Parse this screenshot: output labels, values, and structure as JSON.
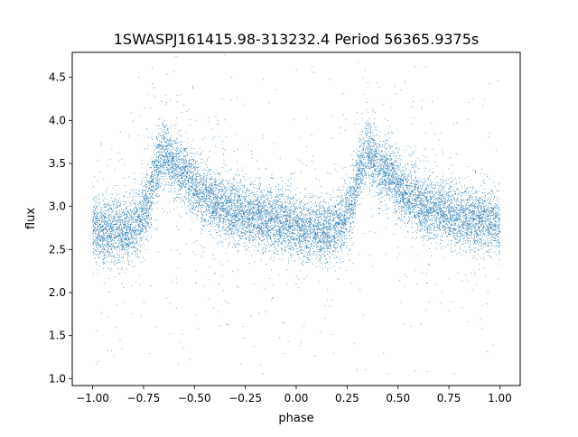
{
  "chart_data": {
    "type": "scatter",
    "title": "1SWASPJ161415.98-313232.4 Period 56365.9375s",
    "xlabel": "phase",
    "ylabel": "flux",
    "xlim": [
      -1.1,
      1.1
    ],
    "ylim": [
      0.92,
      4.79
    ],
    "xticks": [
      -1.0,
      -0.75,
      -0.5,
      -0.25,
      0.0,
      0.25,
      0.5,
      0.75,
      1.0
    ],
    "xtick_labels": [
      "−1.00",
      "−0.75",
      "−0.50",
      "−0.25",
      "0.00",
      "0.25",
      "0.50",
      "0.75",
      "1.00"
    ],
    "yticks": [
      1.0,
      1.5,
      2.0,
      2.5,
      3.0,
      3.5,
      4.0,
      4.5
    ],
    "ytick_labels": [
      "1.0",
      "1.5",
      "2.0",
      "2.5",
      "3.0",
      "3.5",
      "4.0",
      "4.5"
    ],
    "grid": false,
    "marker_color": "#1f77b4",
    "curve_model": {
      "phase_range": [
        -1.0,
        1.0
      ],
      "period_in_phase": 1.0,
      "knots": [
        [
          0.0,
          2.8
        ],
        [
          0.03,
          2.72
        ],
        [
          0.17,
          2.72
        ],
        [
          0.22,
          2.8
        ],
        [
          0.27,
          3.02
        ],
        [
          0.31,
          3.42
        ],
        [
          0.35,
          3.62
        ],
        [
          0.43,
          3.42
        ],
        [
          0.55,
          3.12
        ],
        [
          0.65,
          2.98
        ],
        [
          0.8,
          2.88
        ],
        [
          1.0,
          2.8
        ]
      ],
      "scatter_sigma": 0.18,
      "point_count": 13000
    }
  }
}
